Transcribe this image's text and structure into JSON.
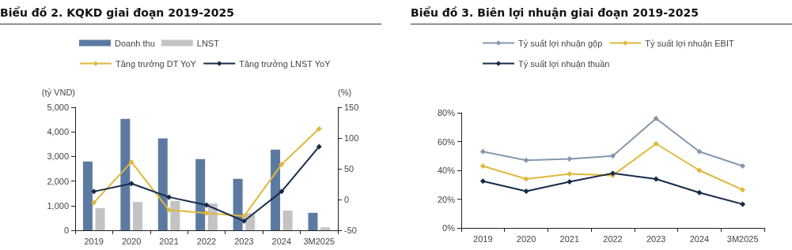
{
  "chart_data": [
    {
      "type": "bar",
      "title": "Biểu đồ 2. KQKD giai đoạn 2019-2025",
      "ylabel": "(tỷ VND)",
      "y2label": "(%)",
      "categories": [
        "2019",
        "2020",
        "2021",
        "2022",
        "2023",
        "2024",
        "3M2025"
      ],
      "series": [
        {
          "name": "Doanh thu",
          "color": "#5b7aa1",
          "values": [
            2800,
            4530,
            3730,
            2890,
            2090,
            3280,
            710
          ]
        },
        {
          "name": "LNST",
          "color": "#c3c3c3",
          "values": [
            900,
            1150,
            1190,
            1090,
            690,
            800,
            120
          ]
        },
        {
          "name": "Tăng trưởng DT YoY",
          "type": "line",
          "axis": "y2",
          "color": "#e0b83c",
          "values": [
            -5,
            61,
            -17,
            -22,
            -27,
            57,
            115
          ]
        },
        {
          "name": "Tăng trưởng LNST YoY",
          "type": "line",
          "axis": "y2",
          "color": "#172c48",
          "values": [
            13,
            26,
            4,
            -9,
            -35,
            13,
            86
          ]
        }
      ],
      "ylim": [
        0,
        5000
      ],
      "yticks": [
        0,
        {
          "value": 1000,
          "label": "1,000"
        },
        {
          "value": 2000,
          "label": "2,000"
        },
        {
          "value": 3000,
          "label": "3,000"
        },
        {
          "value": 4000,
          "label": "4,000"
        },
        {
          "value": 5000,
          "label": "5,000"
        }
      ],
      "y2lim": [
        -50,
        150
      ],
      "y2ticks": [
        -50,
        0,
        50,
        100,
        150
      ],
      "legend": "top",
      "grid": false,
      "marker": "diamond",
      "line_style": "solid"
    },
    {
      "type": "line",
      "title": "Biểu đồ 3. Biên lợi nhuận giai đoạn 2019-2025",
      "categories": [
        "2019",
        "2020",
        "2021",
        "2022",
        "2023",
        "2024",
        "3M2025"
      ],
      "series": [
        {
          "name": "Tỷ suất lợi nhuận gộp",
          "color": "#8497ae",
          "values": [
            53,
            47,
            48,
            50,
            76,
            53,
            43
          ]
        },
        {
          "name": "Tỷ suất lợi nhuận EBIT",
          "color": "#e0b83c",
          "values": [
            43,
            34,
            37.5,
            36.5,
            58.5,
            40,
            26.5
          ]
        },
        {
          "name": "Tỷ suất lợi nhuận thuần",
          "color": "#172c48",
          "values": [
            32.5,
            25.5,
            32,
            38,
            34,
            24.5,
            16.5
          ]
        }
      ],
      "ylim": [
        0,
        80
      ],
      "yticks": [
        {
          "value": 0,
          "label": "0%"
        },
        {
          "value": 20,
          "label": "20%"
        },
        {
          "value": 40,
          "label": "40%"
        },
        {
          "value": 60,
          "label": "60%"
        },
        {
          "value": 80,
          "label": "80%"
        }
      ],
      "legend": "top",
      "grid": false,
      "marker": "diamond",
      "line_style": "solid"
    }
  ]
}
